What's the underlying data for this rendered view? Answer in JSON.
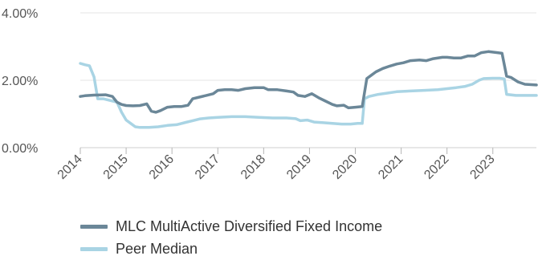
{
  "chart_data": {
    "type": "line",
    "xlim": [
      2014.0,
      2023.95
    ],
    "ylim": [
      0,
      4
    ],
    "y_ticks": [
      {
        "value": 0,
        "label": "0.00%"
      },
      {
        "value": 2,
        "label": "2.00%"
      },
      {
        "value": 4,
        "label": "4.00%"
      }
    ],
    "x_ticks": [
      {
        "value": 2014,
        "label": "2014"
      },
      {
        "value": 2015,
        "label": "2015"
      },
      {
        "value": 2016,
        "label": "2016"
      },
      {
        "value": 2017,
        "label": "2017"
      },
      {
        "value": 2018,
        "label": "2018"
      },
      {
        "value": 2019,
        "label": "2019"
      },
      {
        "value": 2020,
        "label": "2020"
      },
      {
        "value": 2021,
        "label": "2021"
      },
      {
        "value": 2022,
        "label": "2022"
      },
      {
        "value": 2023,
        "label": "2023"
      }
    ],
    "grid": "horizontal",
    "legend_position": "bottom",
    "series": [
      {
        "name": "MLC MultiActive Diversified Fixed Income",
        "color": "#6b8798",
        "points": [
          [
            2014.0,
            1.52
          ],
          [
            2014.1,
            1.54
          ],
          [
            2014.3,
            1.56
          ],
          [
            2014.55,
            1.57
          ],
          [
            2014.7,
            1.52
          ],
          [
            2014.8,
            1.35
          ],
          [
            2014.9,
            1.28
          ],
          [
            2015.0,
            1.25
          ],
          [
            2015.15,
            1.24
          ],
          [
            2015.3,
            1.25
          ],
          [
            2015.45,
            1.3
          ],
          [
            2015.55,
            1.08
          ],
          [
            2015.65,
            1.05
          ],
          [
            2015.75,
            1.1
          ],
          [
            2015.9,
            1.2
          ],
          [
            2016.05,
            1.22
          ],
          [
            2016.2,
            1.22
          ],
          [
            2016.35,
            1.26
          ],
          [
            2016.45,
            1.45
          ],
          [
            2016.6,
            1.5
          ],
          [
            2016.75,
            1.55
          ],
          [
            2016.9,
            1.6
          ],
          [
            2017.0,
            1.7
          ],
          [
            2017.15,
            1.72
          ],
          [
            2017.3,
            1.72
          ],
          [
            2017.45,
            1.7
          ],
          [
            2017.6,
            1.75
          ],
          [
            2017.8,
            1.78
          ],
          [
            2018.0,
            1.78
          ],
          [
            2018.1,
            1.72
          ],
          [
            2018.3,
            1.72
          ],
          [
            2018.5,
            1.68
          ],
          [
            2018.65,
            1.65
          ],
          [
            2018.75,
            1.55
          ],
          [
            2018.9,
            1.52
          ],
          [
            2019.05,
            1.6
          ],
          [
            2019.2,
            1.48
          ],
          [
            2019.35,
            1.38
          ],
          [
            2019.5,
            1.28
          ],
          [
            2019.6,
            1.24
          ],
          [
            2019.75,
            1.26
          ],
          [
            2019.85,
            1.18
          ],
          [
            2020.0,
            1.2
          ],
          [
            2020.15,
            1.22
          ],
          [
            2020.25,
            2.05
          ],
          [
            2020.35,
            2.15
          ],
          [
            2020.45,
            2.25
          ],
          [
            2020.6,
            2.35
          ],
          [
            2020.75,
            2.42
          ],
          [
            2020.9,
            2.48
          ],
          [
            2021.05,
            2.52
          ],
          [
            2021.2,
            2.58
          ],
          [
            2021.4,
            2.6
          ],
          [
            2021.55,
            2.58
          ],
          [
            2021.7,
            2.64
          ],
          [
            2021.9,
            2.68
          ],
          [
            2022.0,
            2.68
          ],
          [
            2022.15,
            2.66
          ],
          [
            2022.3,
            2.66
          ],
          [
            2022.45,
            2.72
          ],
          [
            2022.6,
            2.72
          ],
          [
            2022.75,
            2.82
          ],
          [
            2022.9,
            2.85
          ],
          [
            2023.1,
            2.82
          ],
          [
            2023.2,
            2.8
          ],
          [
            2023.3,
            2.12
          ],
          [
            2023.4,
            2.08
          ],
          [
            2023.55,
            1.95
          ],
          [
            2023.7,
            1.88
          ],
          [
            2023.95,
            1.86
          ]
        ]
      },
      {
        "name": "Peer Median",
        "color": "#a9d4e4",
        "points": [
          [
            2014.0,
            2.5
          ],
          [
            2014.1,
            2.46
          ],
          [
            2014.2,
            2.43
          ],
          [
            2014.3,
            2.1
          ],
          [
            2014.38,
            1.45
          ],
          [
            2014.5,
            1.45
          ],
          [
            2014.65,
            1.4
          ],
          [
            2014.8,
            1.35
          ],
          [
            2014.9,
            1.05
          ],
          [
            2015.0,
            0.82
          ],
          [
            2015.1,
            0.72
          ],
          [
            2015.2,
            0.62
          ],
          [
            2015.3,
            0.6
          ],
          [
            2015.5,
            0.6
          ],
          [
            2015.7,
            0.62
          ],
          [
            2015.9,
            0.66
          ],
          [
            2016.1,
            0.68
          ],
          [
            2016.3,
            0.75
          ],
          [
            2016.45,
            0.8
          ],
          [
            2016.6,
            0.85
          ],
          [
            2016.8,
            0.88
          ],
          [
            2017.0,
            0.9
          ],
          [
            2017.3,
            0.92
          ],
          [
            2017.6,
            0.92
          ],
          [
            2017.9,
            0.9
          ],
          [
            2018.2,
            0.88
          ],
          [
            2018.5,
            0.88
          ],
          [
            2018.7,
            0.86
          ],
          [
            2018.8,
            0.8
          ],
          [
            2018.95,
            0.82
          ],
          [
            2019.1,
            0.76
          ],
          [
            2019.3,
            0.74
          ],
          [
            2019.5,
            0.72
          ],
          [
            2019.7,
            0.7
          ],
          [
            2019.9,
            0.7
          ],
          [
            2020.05,
            0.72
          ],
          [
            2020.15,
            0.72
          ],
          [
            2020.2,
            1.45
          ],
          [
            2020.3,
            1.52
          ],
          [
            2020.5,
            1.58
          ],
          [
            2020.7,
            1.62
          ],
          [
            2020.9,
            1.66
          ],
          [
            2021.2,
            1.68
          ],
          [
            2021.5,
            1.7
          ],
          [
            2021.8,
            1.72
          ],
          [
            2022.0,
            1.75
          ],
          [
            2022.2,
            1.78
          ],
          [
            2022.4,
            1.82
          ],
          [
            2022.55,
            1.88
          ],
          [
            2022.7,
            2.0
          ],
          [
            2022.8,
            2.05
          ],
          [
            2023.0,
            2.06
          ],
          [
            2023.15,
            2.06
          ],
          [
            2023.25,
            2.04
          ],
          [
            2023.3,
            1.58
          ],
          [
            2023.5,
            1.55
          ],
          [
            2023.95,
            1.55
          ]
        ]
      }
    ]
  }
}
